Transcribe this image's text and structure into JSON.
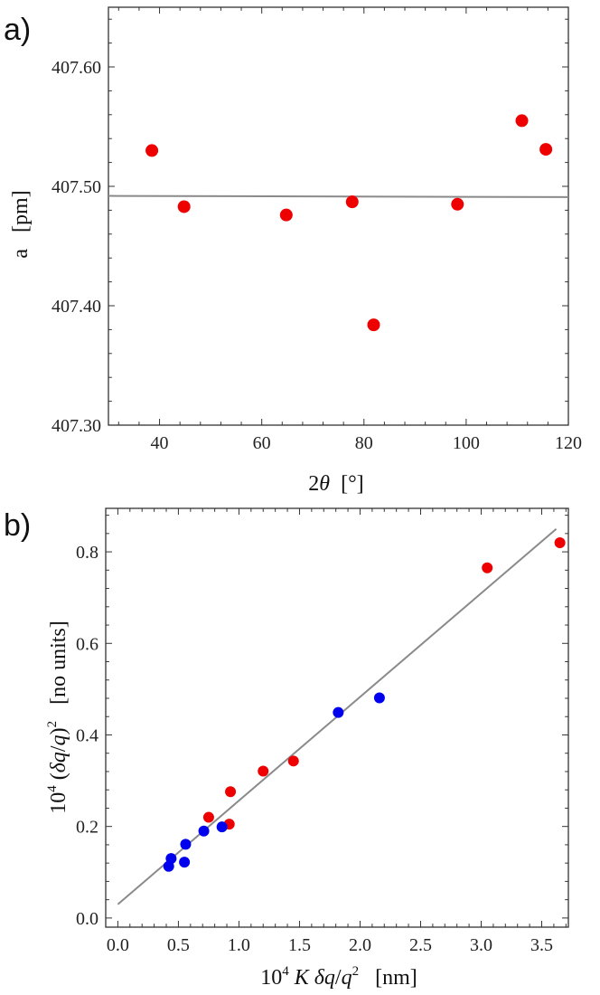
{
  "chart_data": [
    {
      "panel": "a)",
      "type": "scatter",
      "xlabel": "2θ [°]",
      "ylabel": "a [pm]",
      "xlim": [
        30,
        120
      ],
      "ylim": [
        407.3,
        407.65
      ],
      "xticks": [
        40,
        60,
        80,
        100,
        120
      ],
      "xtick_labels": [
        "40",
        "60",
        "80",
        "100",
        "120"
      ],
      "yticks": [
        407.3,
        407.4,
        407.5,
        407.6
      ],
      "ytick_labels": [
        "407.30",
        "407.40",
        "407.50",
        "407.60"
      ],
      "series": [
        {
          "name": "data",
          "color": "#ee0000",
          "x": [
            38.5,
            44.8,
            64.8,
            77.7,
            81.9,
            98.3,
            110.9,
            115.6
          ],
          "y": [
            407.53,
            407.483,
            407.476,
            407.487,
            407.384,
            407.485,
            407.555,
            407.531
          ]
        }
      ],
      "fit_line": {
        "color": "#8a8a8a",
        "x": [
          30,
          120
        ],
        "y": [
          407.492,
          407.491
        ]
      }
    },
    {
      "panel": "b)",
      "type": "scatter",
      "xlabel": "10^4 K δq/q^2 [nm]",
      "ylabel": "10^4 (δq/q)^2 [no units]",
      "xlim": [
        -0.1,
        3.72
      ],
      "ylim": [
        -0.02,
        0.895
      ],
      "xticks": [
        0.0,
        0.5,
        1.0,
        1.5,
        2.0,
        2.5,
        3.0,
        3.5
      ],
      "xtick_labels": [
        "0.0",
        "0.5",
        "1.0",
        "1.5",
        "2.0",
        "2.5",
        "3.0",
        "3.5"
      ],
      "yticks": [
        0.0,
        0.2,
        0.4,
        0.6,
        0.8
      ],
      "ytick_labels": [
        "0.0",
        "0.2",
        "0.4",
        "0.6",
        "0.8"
      ],
      "series": [
        {
          "name": "red",
          "color": "#ee0000",
          "x": [
            0.75,
            0.92,
            0.93,
            1.2,
            1.45,
            3.05,
            3.65
          ],
          "y": [
            0.22,
            0.205,
            0.276,
            0.321,
            0.343,
            0.765,
            0.82
          ]
        },
        {
          "name": "blue",
          "color": "#0000ee",
          "x": [
            0.42,
            0.44,
            0.55,
            0.56,
            0.71,
            0.86,
            1.82,
            2.16
          ],
          "y": [
            0.113,
            0.13,
            0.122,
            0.161,
            0.19,
            0.199,
            0.449,
            0.481
          ]
        }
      ],
      "fit_line": {
        "color": "#8a8a8a",
        "x": [
          0.0,
          3.62
        ],
        "y": [
          0.03,
          0.85
        ]
      }
    }
  ]
}
